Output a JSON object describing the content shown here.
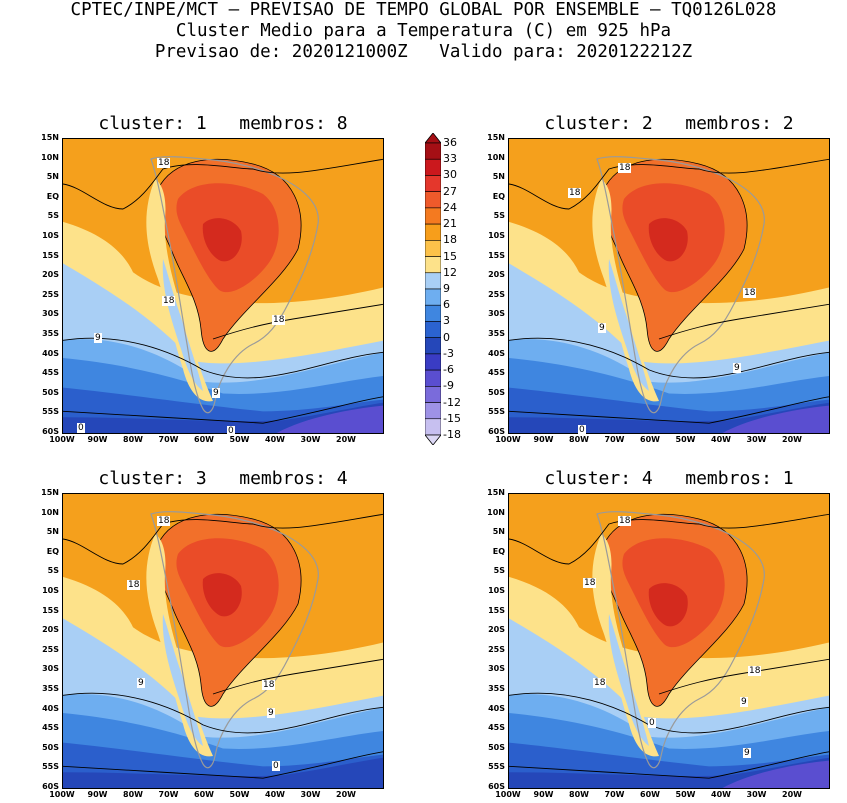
{
  "header": {
    "line1": "CPTEC/INPE/MCT – PREVISAO DE TEMPO GLOBAL POR ENSEMBLE – TQ0126L028",
    "line2": "Cluster Medio para a Temperatura (C) em 925 hPa",
    "line3": "Previsao de: 2020121000Z   Valido para: 2020122212Z"
  },
  "panels": [
    {
      "title": "cluster: 1   membros: 8",
      "labels": [
        "18",
        "18",
        "18",
        "9",
        "9",
        "0",
        "0"
      ]
    },
    {
      "title": "cluster: 2   membros: 2",
      "labels": [
        "18",
        "18",
        "18",
        "9",
        "9",
        "0"
      ]
    },
    {
      "title": "cluster: 3   membros: 4",
      "labels": [
        "18",
        "18",
        "18",
        "9",
        "9",
        "0"
      ]
    },
    {
      "title": "cluster: 4   membros: 1",
      "labels": [
        "18",
        "18",
        "18",
        "18",
        "9",
        "9",
        "0"
      ]
    }
  ],
  "axes": {
    "lat_labels": [
      "15N",
      "10N",
      "5N",
      "EQ",
      "5S",
      "10S",
      "15S",
      "20S",
      "25S",
      "30S",
      "35S",
      "40S",
      "45S",
      "50S",
      "55S",
      "60S"
    ],
    "lon_labels": [
      "100W",
      "90W",
      "80W",
      "70W",
      "60W",
      "50W",
      "40W",
      "30W",
      "20W"
    ]
  },
  "colorbar": {
    "levels": [
      "36",
      "33",
      "30",
      "27",
      "24",
      "21",
      "18",
      "15",
      "12",
      "9",
      "6",
      "3",
      "0",
      "-3",
      "-6",
      "-9",
      "-12",
      "-15",
      "-18"
    ],
    "colors": [
      "#a50f15",
      "#cb181d",
      "#e4372c",
      "#ef5a2b",
      "#f47a20",
      "#f79e1b",
      "#fcc24a",
      "#fde28a",
      "#a9cff5",
      "#6eaef0",
      "#3f86e0",
      "#2b63d0",
      "#2547b9",
      "#3a3cc4",
      "#5a4ed0",
      "#7a6bdb",
      "#9e92e6",
      "#c7c0f0"
    ]
  },
  "fill_colors": {
    "red_dark": "#d42a1e",
    "red": "#ea4c28",
    "orange_red": "#f2702a",
    "orange": "#f5a01c",
    "yellow": "#fde28a",
    "light_blue": "#a9cff5",
    "blue": "#6eaef0",
    "mid_blue": "#3f86e0",
    "dark_blue": "#2b5fcc",
    "deep_blue": "#2547b9",
    "purple": "#5a4ed0"
  }
}
